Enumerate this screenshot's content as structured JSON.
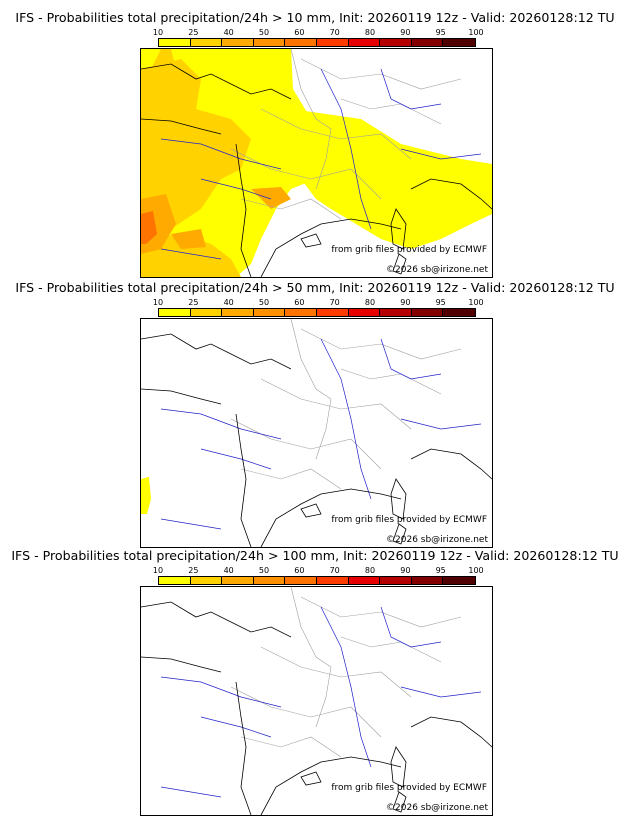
{
  "panels": [
    {
      "title": "IFS - Probabilities total precipitation/24h > 10 mm, Init: 20260119 12z - Valid: 20260128:12 TU"
    },
    {
      "title": "IFS - Probabilities total precipitation/24h > 50 mm, Init: 20260119 12z - Valid: 20260128:12 TU"
    },
    {
      "title": "IFS - Probabilities total precipitation/24h > 100 mm, Init: 20260119 12z - Valid: 20260128:12 TU"
    }
  ],
  "legend": {
    "ticks": [
      "10",
      "25",
      "40",
      "50",
      "60",
      "70",
      "80",
      "90",
      "95",
      "100"
    ],
    "colors": [
      "#ffff00",
      "#ffd200",
      "#ffaa00",
      "#ff9100",
      "#ff7300",
      "#ff3c00",
      "#e60000",
      "#b40000",
      "#820000",
      "#500000"
    ]
  },
  "credits": {
    "source": "from grib files provided by ECMWF",
    "copyright": "©2026 sb@irizone.net"
  },
  "map_colors": {
    "coast": "#000000",
    "rivers": "#2222cc",
    "borders": "#a0a0a0"
  }
}
